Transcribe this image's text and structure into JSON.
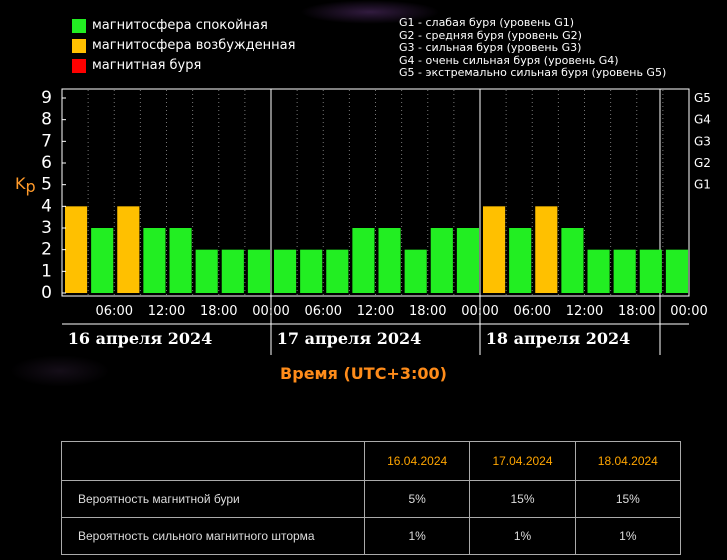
{
  "legend": {
    "items": [
      {
        "label": "магнитосфера спокойная",
        "color": "#22ee22"
      },
      {
        "label": "магнитосфера возбужденная",
        "color": "#ffc000"
      },
      {
        "label": "магнитная буря",
        "color": "#ff0000"
      }
    ],
    "g_scale": [
      "G1 - слабая буря (уровень G1)",
      "G2 - средняя буря (уровень G2)",
      "G3 - сильная буря (уровень G3)",
      "G4 - очень сильная буря (уровень G4)",
      "G5 - экстремально сильная буря (уровень G5)"
    ]
  },
  "chart_data": {
    "type": "bar",
    "ylabel": "Kp",
    "ylim": [
      0,
      9
    ],
    "y_ticks": [
      "0",
      "1",
      "2",
      "3",
      "4",
      "5",
      "6",
      "7",
      "8",
      "9"
    ],
    "g_ticks": [
      {
        "label": "G1",
        "kp": 5
      },
      {
        "label": "G2",
        "kp": 6
      },
      {
        "label": "G3",
        "kp": 7
      },
      {
        "label": "G4",
        "kp": 8
      },
      {
        "label": "G5",
        "kp": 9
      }
    ],
    "x_tick_labels": [
      "06:00",
      "12:00",
      "18:00",
      "00:00",
      "06:00",
      "12:00",
      "18:00",
      "00:00",
      "06:00",
      "12:00",
      "18:00",
      "00:00"
    ],
    "days": [
      "16 апреля 2024",
      "17 апреля 2024",
      "18 апреля 2024"
    ],
    "xlabel": "Время (UTC+3:00)",
    "values": [
      4,
      3,
      4,
      3,
      3,
      2,
      2,
      2,
      2,
      2,
      2,
      3,
      3,
      2,
      3,
      3,
      4,
      3,
      4,
      3,
      2,
      2,
      2,
      2
    ],
    "colors": {
      "quiet": "#22ee22",
      "excited": "#ffc000",
      "storm": "#ff0000"
    }
  },
  "table": {
    "headers": [
      "",
      "16.04.2024",
      "17.04.2024",
      "18.04.2024"
    ],
    "rows": [
      {
        "name": "Вероятность магнитной бури",
        "values": [
          "5%",
          "15%",
          "15%"
        ]
      },
      {
        "name": "Вероятность сильного магнитного шторма",
        "values": [
          "1%",
          "1%",
          "1%"
        ]
      }
    ]
  }
}
